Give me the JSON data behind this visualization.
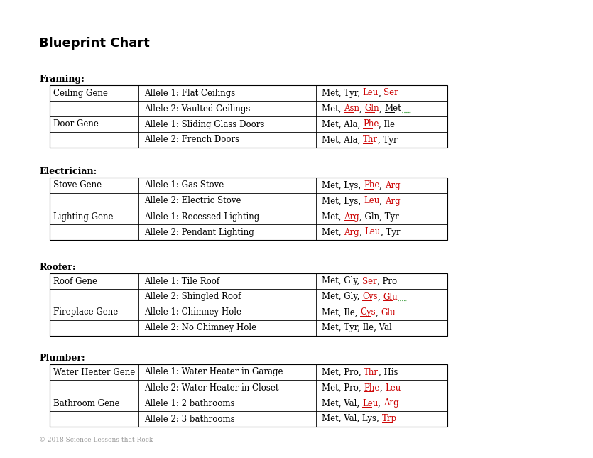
{
  "title": "Blueprint Chart",
  "background_color": "#ffffff",
  "black": "#000000",
  "red": "#cc0000",
  "green": "#008000",
  "gray": "#aaaaaa",
  "footer": "© 2018 Science Lessons that Rock",
  "sections": [
    {
      "header": "Framing:",
      "rows": [
        {
          "col0": "Ceiling Gene",
          "col1": "Allele 1: Flat Ceilings",
          "amino": [
            [
              "Met, Tyr, ",
              "#000000",
              false
            ],
            [
              "Leu",
              "#cc0000",
              true
            ],
            [
              ", ",
              "#000000",
              false
            ],
            [
              "Ser",
              "#cc0000",
              true
            ]
          ]
        },
        {
          "col0": "",
          "col1": "Allele 2: Vaulted Ceilings",
          "amino": [
            [
              "Met, ",
              "#000000",
              false
            ],
            [
              "Asn",
              "#cc0000",
              true
            ],
            [
              ", ",
              "#000000",
              false
            ],
            [
              "Gln",
              "#cc0000",
              true
            ],
            [
              ", ",
              "#000000",
              false
            ],
            [
              "Met",
              "#000000",
              true
            ],
            [
              "..",
              "#008000",
              false
            ]
          ]
        },
        {
          "col0": "Door Gene",
          "col1": "Allele 1: Sliding Glass Doors",
          "amino": [
            [
              "Met, Ala, ",
              "#000000",
              false
            ],
            [
              "Phe",
              "#cc0000",
              true
            ],
            [
              ", Ile",
              "#000000",
              false
            ]
          ]
        },
        {
          "col0": "",
          "col1": "Allele 2: French Doors",
          "amino": [
            [
              "Met, Ala, ",
              "#000000",
              false
            ],
            [
              "Thr",
              "#cc0000",
              true
            ],
            [
              ", Tyr",
              "#000000",
              false
            ]
          ]
        }
      ]
    },
    {
      "header": "Electrician:",
      "rows": [
        {
          "col0": "Stove Gene",
          "col1": "Allele 1: Gas Stove",
          "amino": [
            [
              "Met, Lys, ",
              "#000000",
              false
            ],
            [
              "Phe",
              "#cc0000",
              true
            ],
            [
              ", ",
              "#000000",
              false
            ],
            [
              "Arg",
              "#cc0000",
              false
            ]
          ]
        },
        {
          "col0": "",
          "col1": "Allele 2: Electric Stove",
          "amino": [
            [
              "Met, Lys, ",
              "#000000",
              false
            ],
            [
              "Leu",
              "#cc0000",
              true
            ],
            [
              ", ",
              "#000000",
              false
            ],
            [
              "Arg",
              "#cc0000",
              false
            ]
          ]
        },
        {
          "col0": "Lighting Gene",
          "col1": "Allele 1: Recessed Lighting",
          "amino": [
            [
              "Met, ",
              "#000000",
              false
            ],
            [
              "Arg",
              "#cc0000",
              true
            ],
            [
              ", Gln, Tyr",
              "#000000",
              false
            ]
          ]
        },
        {
          "col0": "",
          "col1": "Allele 2: Pendant Lighting",
          "amino": [
            [
              "Met, ",
              "#000000",
              false
            ],
            [
              "Arg",
              "#cc0000",
              true
            ],
            [
              ", ",
              "#000000",
              false
            ],
            [
              "Leu",
              "#cc0000",
              false
            ],
            [
              ", Tyr",
              "#000000",
              false
            ]
          ]
        }
      ]
    },
    {
      "header": "Roofer:",
      "rows": [
        {
          "col0": "Roof Gene",
          "col1": "Allele 1: Tile Roof",
          "amino": [
            [
              "Met, Gly, ",
              "#000000",
              false
            ],
            [
              "Ser",
              "#cc0000",
              true
            ],
            [
              ", Pro",
              "#000000",
              false
            ]
          ]
        },
        {
          "col0": "",
          "col1": "Allele 2: Shingled Roof",
          "amino": [
            [
              "Met, Gly, ",
              "#000000",
              false
            ],
            [
              "Cys",
              "#cc0000",
              true
            ],
            [
              ", ",
              "#000000",
              false
            ],
            [
              "Glu",
              "#cc0000",
              true
            ],
            [
              "..",
              "#008000",
              false
            ]
          ]
        },
        {
          "col0": "Fireplace Gene",
          "col1": "Allele 1: Chimney Hole",
          "amino": [
            [
              "Met, Ile, ",
              "#000000",
              false
            ],
            [
              "Cys",
              "#cc0000",
              true
            ],
            [
              ", ",
              "#000000",
              false
            ],
            [
              "Glu",
              "#cc0000",
              false
            ]
          ]
        },
        {
          "col0": "",
          "col1": "Allele 2: No Chimney Hole",
          "amino": [
            [
              "Met, Tyr, Ile, Val",
              "#000000",
              false
            ]
          ]
        }
      ]
    },
    {
      "header": "Plumber:",
      "rows": [
        {
          "col0": "Water Heater Gene",
          "col1": "Allele 1: Water Heater in Garage",
          "amino": [
            [
              "Met, Pro, ",
              "#000000",
              false
            ],
            [
              "Thr",
              "#cc0000",
              true
            ],
            [
              ", His",
              "#000000",
              false
            ]
          ]
        },
        {
          "col0": "",
          "col1": "Allele 2: Water Heater in Closet",
          "amino": [
            [
              "Met, Pro, ",
              "#000000",
              false
            ],
            [
              "Phe",
              "#cc0000",
              true
            ],
            [
              ", ",
              "#000000",
              false
            ],
            [
              "Leu",
              "#cc0000",
              false
            ]
          ]
        },
        {
          "col0": "Bathroom Gene",
          "col1": "Allele 1: 2 bathrooms",
          "amino": [
            [
              "Met, Val, ",
              "#000000",
              false
            ],
            [
              "Leu",
              "#cc0000",
              true
            ],
            [
              ", ",
              "#000000",
              false
            ],
            [
              "Arg",
              "#cc0000",
              false
            ]
          ]
        },
        {
          "col0": "",
          "col1": "Allele 2: 3 bathrooms",
          "amino": [
            [
              "Met, Val, Lys, ",
              "#000000",
              false
            ],
            [
              "Trp",
              "#cc0000",
              true
            ]
          ]
        }
      ]
    }
  ]
}
